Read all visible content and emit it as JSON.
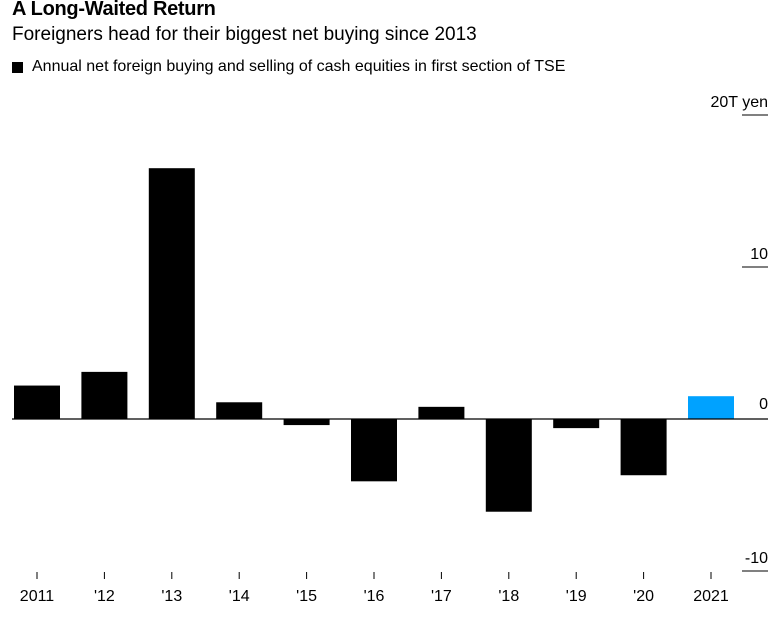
{
  "title": "A Long-Waited Return",
  "subtitle": "Foreigners head for their biggest net buying since 2013",
  "legend": {
    "label": "Annual net foreign buying and selling of cash equities in first section of TSE",
    "color": "#000000"
  },
  "chart_data": {
    "type": "bar",
    "title": "A Long-Waited Return",
    "subtitle": "Foreigners head for their biggest net buying since 2013",
    "categories": [
      "2011",
      "'12",
      "'13",
      "'14",
      "'15",
      "'16",
      "'17",
      "'18",
      "'19",
      "'20",
      "2021"
    ],
    "series": [
      {
        "name": "Annual net foreign buying and selling of cash equities in first section of TSE",
        "values": [
          2.2,
          3.1,
          16.5,
          1.1,
          -0.4,
          -4.1,
          0.8,
          -6.1,
          -0.6,
          -3.7,
          1.5
        ]
      }
    ],
    "colors": [
      "#000000",
      "#000000",
      "#000000",
      "#000000",
      "#000000",
      "#000000",
      "#000000",
      "#000000",
      "#000000",
      "#000000",
      "#00A2FF"
    ],
    "ylim": [
      -12,
      22
    ],
    "yticks": [
      -10,
      0,
      10,
      20
    ],
    "ytick_labels": [
      "-10",
      "0",
      "10",
      "20T yen"
    ],
    "axis_position": "right",
    "xlabel": "",
    "ylabel": ""
  }
}
